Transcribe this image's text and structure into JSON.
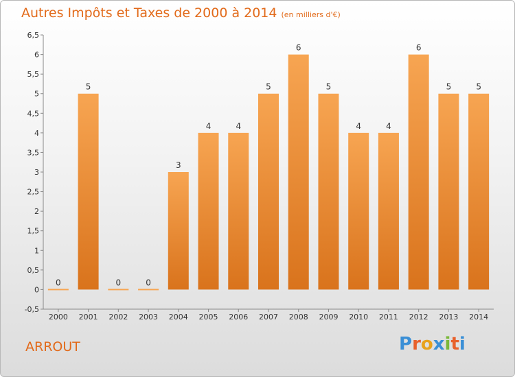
{
  "title": "Autres Impôts et Taxes de 2000 à 2014",
  "subtitle": "(en milliers d'€)",
  "location": "ARROUT",
  "brand": {
    "letters": [
      "P",
      "r",
      "o",
      "x",
      "i",
      "t",
      "i"
    ],
    "colors": [
      "#3a8fd6",
      "#e8612c",
      "#e8a21c",
      "#3a8fd6",
      "#7ab83a",
      "#e8612c",
      "#3a8fd6"
    ]
  },
  "colors": {
    "accent": "#e26a1a",
    "bar_top": "#f7a552",
    "bar_bottom": "#d9731c"
  },
  "chart_data": {
    "type": "bar",
    "categories": [
      "2000",
      "2001",
      "2002",
      "2003",
      "2004",
      "2005",
      "2006",
      "2007",
      "2008",
      "2009",
      "2010",
      "2011",
      "2012",
      "2013",
      "2014"
    ],
    "values": [
      0,
      5,
      0,
      0,
      3,
      4,
      4,
      5,
      6,
      5,
      4,
      4,
      6,
      5,
      5
    ],
    "ylim": [
      -0.5,
      6.5
    ],
    "yticks": [
      "-0,5",
      "0",
      "0,5",
      "1",
      "1,5",
      "2",
      "2,5",
      "3",
      "3,5",
      "4",
      "4,5",
      "5",
      "5,5",
      "6",
      "6,5"
    ],
    "grid": false,
    "legend": "none"
  }
}
